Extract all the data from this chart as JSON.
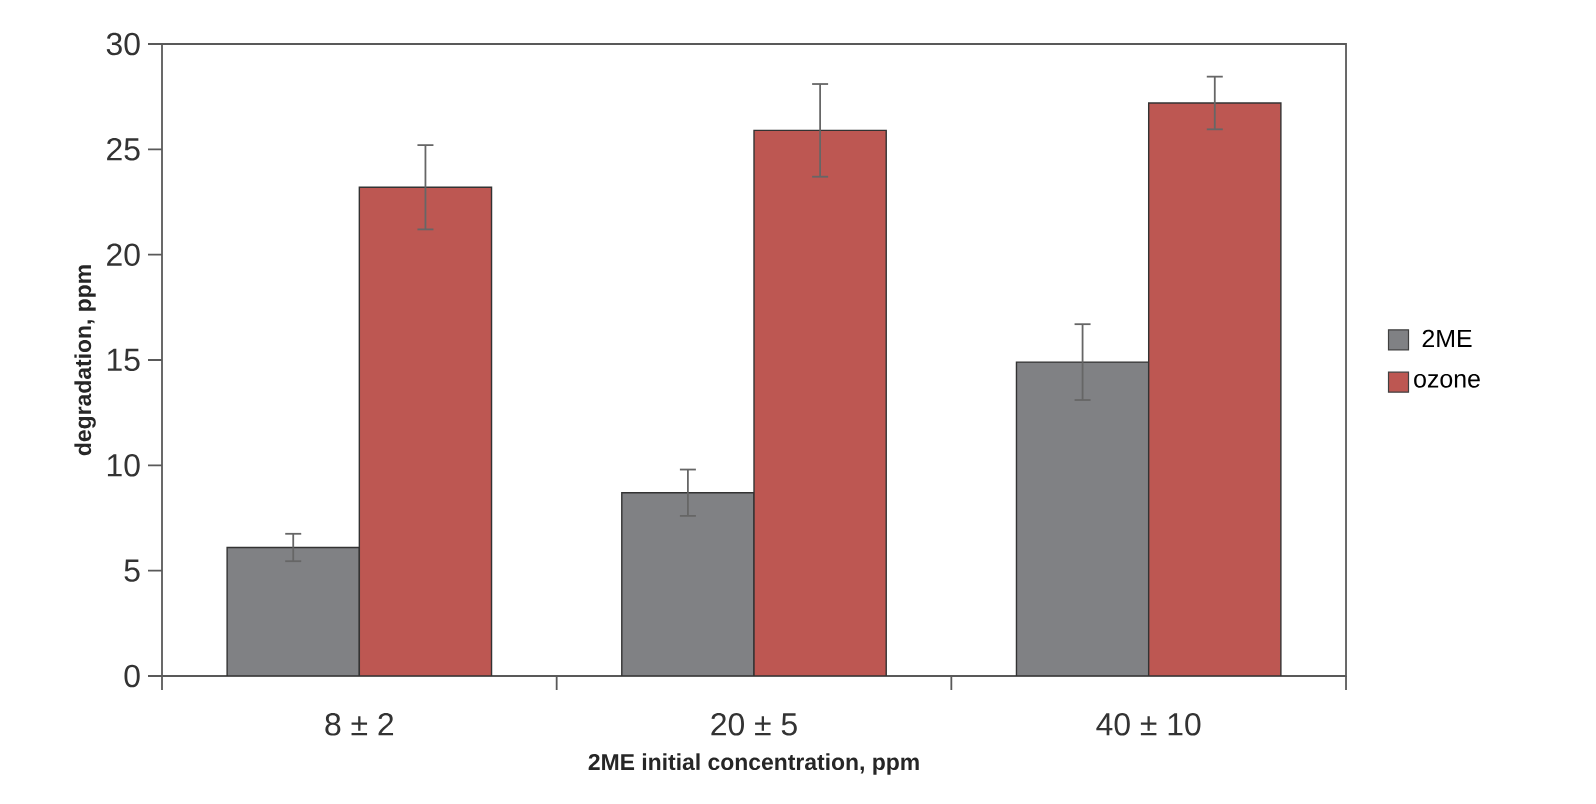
{
  "chart_data": {
    "type": "bar",
    "xlabel": "2ME initial concentration, ppm",
    "ylabel": "degradation, ppm",
    "categories": [
      "8 ± 2",
      "20 ± 5",
      "40 ± 10"
    ],
    "series": [
      {
        "name": "2ME",
        "color": "#808184",
        "values": [
          6.1,
          8.7,
          14.9
        ],
        "errors": [
          0.65,
          1.1,
          1.8
        ]
      },
      {
        "name": "ozone",
        "color": "#bd5752",
        "values": [
          23.2,
          25.9,
          27.2
        ],
        "errors": [
          2.0,
          2.2,
          1.25
        ]
      }
    ],
    "ylim": [
      0,
      30
    ],
    "yticks": [
      0,
      5,
      10,
      15,
      20,
      25,
      30
    ],
    "grid": false,
    "legend": "right"
  }
}
